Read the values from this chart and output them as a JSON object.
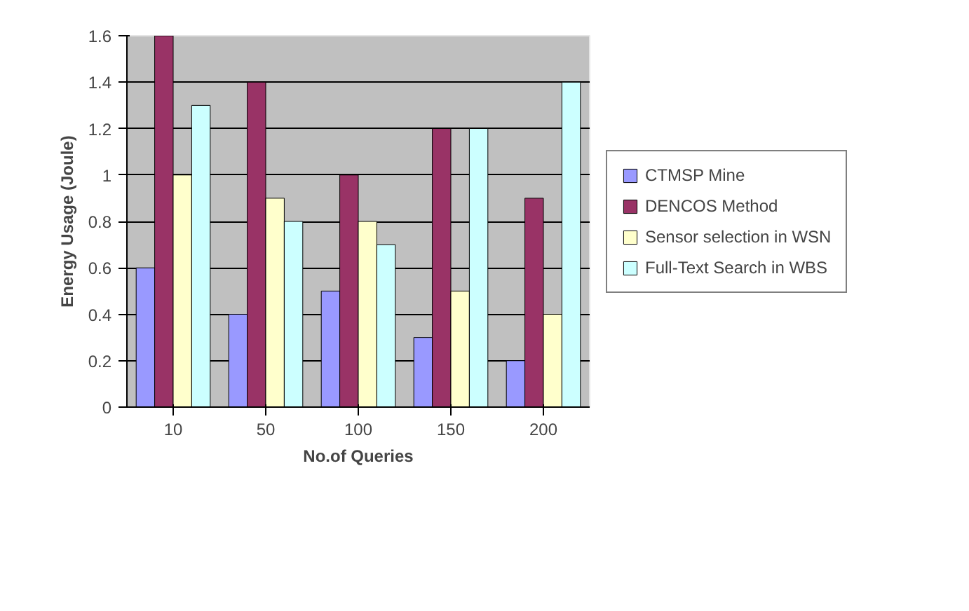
{
  "chart_data": {
    "type": "bar",
    "xlabel": "No.of Queries",
    "ylabel": "Energy Usage (Joule)",
    "categories": [
      "10",
      "50",
      "100",
      "150",
      "200"
    ],
    "series": [
      {
        "name": "CTMSP Mine",
        "color": "#9999ff",
        "values": [
          0.6,
          0.4,
          0.5,
          0.3,
          0.2
        ]
      },
      {
        "name": "DENCOS Method",
        "color": "#993366",
        "values": [
          1.6,
          1.4,
          1.0,
          1.2,
          0.9
        ]
      },
      {
        "name": "Sensor selection in WSN",
        "color": "#ffffcc",
        "values": [
          1.0,
          0.9,
          0.8,
          0.5,
          0.4
        ]
      },
      {
        "name": "Full-Text Search in WBS",
        "color": "#ccffff",
        "values": [
          1.3,
          0.8,
          0.7,
          1.2,
          1.4
        ]
      }
    ],
    "ylim": [
      0,
      1.6
    ],
    "yticks": [
      0,
      0.2,
      0.4,
      0.6,
      0.8,
      1,
      1.2,
      1.4,
      1.6
    ],
    "grid": "y",
    "legend": "right"
  }
}
